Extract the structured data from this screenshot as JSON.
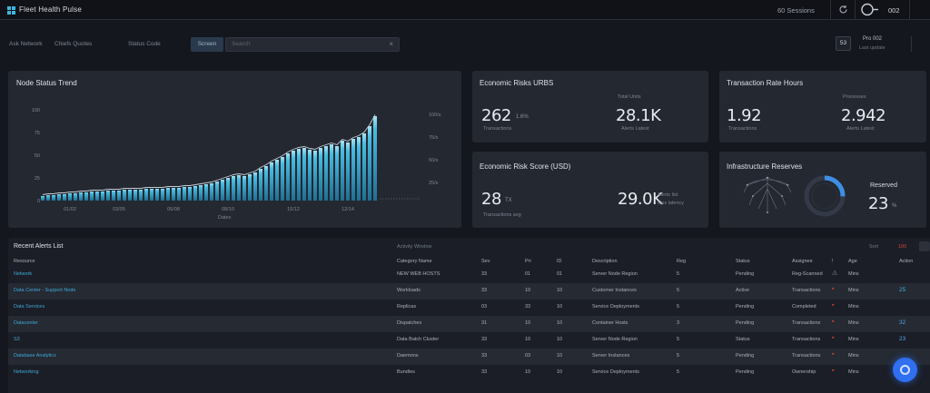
{
  "app": {
    "title": "Fleet Health Pulse",
    "sessions": "60 Sessions",
    "count": "002"
  },
  "toolbar": {
    "items": [
      "Ask Network",
      "Chiefs Quotes",
      "Status Code"
    ],
    "chip": "Screen",
    "search_placeholder": "Search",
    "badge": "53",
    "pro": "Pro 002",
    "updated": "Last update"
  },
  "chart_data": {
    "type": "bar",
    "title": "Node Status Trend",
    "xlabel": "Dates",
    "ylim": [
      0,
      100
    ],
    "yticks": [
      "100",
      "75",
      "50",
      "25",
      "0"
    ],
    "y2ticks": [
      "100/s",
      "75/s",
      "50/s",
      "25/s"
    ],
    "xticks": [
      "01/02",
      "03/05",
      "05/08",
      "08/10",
      "10/12",
      "12/14"
    ],
    "values": [
      5,
      6,
      6,
      7,
      7,
      8,
      8,
      9,
      9,
      10,
      10,
      10,
      11,
      11,
      11,
      12,
      12,
      12,
      12,
      13,
      13,
      13,
      13,
      14,
      14,
      14,
      15,
      15,
      16,
      17,
      18,
      19,
      21,
      23,
      25,
      27,
      28,
      27,
      29,
      31,
      35,
      38,
      42,
      45,
      48,
      52,
      55,
      57,
      58,
      56,
      55,
      58,
      60,
      62,
      60,
      66,
      64,
      68,
      70,
      74,
      82,
      93
    ]
  },
  "cards": {
    "c1": {
      "title": "Economic Risks URBS",
      "value": "262",
      "unit": "1.6%",
      "caption": "Transactions",
      "label2": "Total Units",
      "value2": "28.1K",
      "caption2": "Alerts Latest"
    },
    "c2": {
      "title": "Transaction Rate Hours",
      "value": "1.92",
      "caption": "Transactions",
      "label2": "Processes",
      "value2": "2.942",
      "caption2": "Alerts Latest"
    },
    "c3": {
      "title": "Economic Risk Score (USD)",
      "value": "28",
      "unit": "TX",
      "caption": "Transactions avg",
      "value2": "29.0K",
      "note1": "Alerts list",
      "note2": "Ops latency"
    },
    "c4": {
      "title": "Infrastructure Reserves",
      "label": "Reserved",
      "value": "23",
      "unit": "%",
      "reserved_pct": 23
    }
  },
  "table": {
    "title": "Recent Alerts List",
    "subtitle": "Activity Window",
    "sort_label": "Sort",
    "sort_value": "100",
    "headers": [
      "Resource",
      "Category Name",
      "Sev",
      "Pri",
      "ID",
      "Description",
      "Reg",
      "Status",
      "Assignee",
      "!",
      "Age",
      "Action"
    ],
    "rows": [
      [
        "Network",
        "NEW WEB HOSTS",
        "33",
        "01",
        "01",
        "Server Node Region",
        "5",
        "Pending",
        "Reg-Scanned",
        "warn",
        "Mins",
        ""
      ],
      [
        "Data Center - Support Node",
        "Workloads",
        "33",
        "10",
        "10",
        "Customer Instances",
        "5",
        "Active",
        "Transactions",
        "alert",
        "Mins",
        "25"
      ],
      [
        "Data Services",
        "Replicas",
        "03",
        "33",
        "10",
        "Service Deployments",
        "5",
        "Pending",
        "Completed",
        "alert",
        "Mins",
        ""
      ],
      [
        "Datacenter",
        "Dispatches",
        "31",
        "10",
        "10",
        "Container Hosts",
        "3",
        "Pending",
        "Transactions",
        "alert",
        "Mins",
        "32"
      ],
      [
        "S3",
        "Data Batch Cluster",
        "33",
        "10",
        "10",
        "Server Node Region",
        "5",
        "Status",
        "Transactions",
        "alert",
        "Mins",
        "23"
      ],
      [
        "Database Analytics",
        "Daemons",
        "33",
        "03",
        "10",
        "Server Instances",
        "5",
        "Pending",
        "Transactions",
        "alert",
        "Mins",
        ""
      ],
      [
        "Networking",
        "Bundles",
        "33",
        "10",
        "10",
        "Service Deployments",
        "5",
        "Pending",
        "Ownership",
        "alert",
        "Mins",
        ""
      ]
    ]
  },
  "colors": {
    "accent": "#3fb7e0",
    "fab": "#2f6ff0",
    "alert": "#d9433a",
    "bg": "#14171e",
    "panel": "#242831"
  },
  "icons": [
    "grid-logo-icon",
    "refresh-icon",
    "toggle-icon",
    "close-icon",
    "network-map-icon",
    "fab-icon"
  ]
}
